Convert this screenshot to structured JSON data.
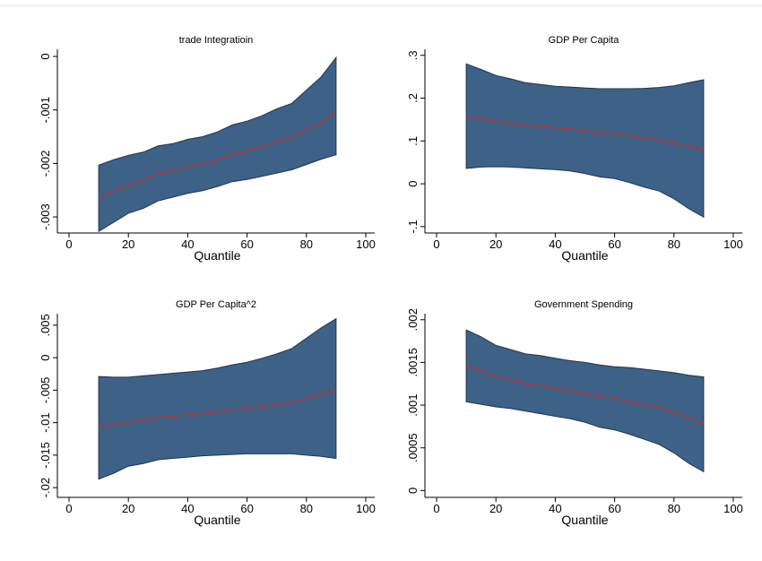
{
  "chart_data": [
    {
      "type": "area",
      "title": "trade Integratioin",
      "xlabel": "Quantile",
      "ylabel": "",
      "xlim": [
        0,
        100
      ],
      "ylim": [
        -0.0033,
        0.0001
      ],
      "xticks": [
        0,
        20,
        40,
        60,
        80,
        100
      ],
      "xtick_labels": [
        "0",
        "20",
        "40",
        "60",
        "80",
        "100"
      ],
      "yticks": [
        0,
        -0.001,
        -0.002,
        -0.003
      ],
      "ytick_labels": [
        "0",
        "-.001",
        "-.002",
        "-.003"
      ],
      "x": [
        10,
        15,
        20,
        25,
        30,
        35,
        40,
        45,
        50,
        55,
        60,
        65,
        70,
        75,
        80,
        85,
        90
      ],
      "estimate": [
        -0.00265,
        -0.00252,
        -0.0024,
        -0.00232,
        -0.00219,
        -0.00214,
        -0.00206,
        -0.00201,
        -0.00193,
        -0.00183,
        -0.00176,
        -0.00168,
        -0.00159,
        -0.00152,
        -0.00138,
        -0.00123,
        -0.00103
      ],
      "upper": [
        -0.00203,
        -0.00193,
        -0.00185,
        -0.00179,
        -0.00167,
        -0.00163,
        -0.00155,
        -0.0015,
        -0.00141,
        -0.00128,
        -0.00121,
        -0.00111,
        -0.00098,
        -0.00088,
        -0.00063,
        -0.00038,
        -2e-05
      ],
      "lower": [
        -0.00327,
        -0.0031,
        -0.00293,
        -0.00284,
        -0.0027,
        -0.00263,
        -0.00256,
        -0.00251,
        -0.00243,
        -0.00234,
        -0.0023,
        -0.00224,
        -0.00218,
        -0.00212,
        -0.00202,
        -0.00192,
        -0.00184
      ],
      "grid": false,
      "colors": {
        "band": "#3e6187",
        "band_edge": "#1f3550",
        "line": "#b2363a"
      }
    },
    {
      "type": "area",
      "title": "GDP Per Capita",
      "xlabel": "Quantile",
      "ylabel": "",
      "xlim": [
        0,
        100
      ],
      "ylim": [
        -0.115,
        0.31
      ],
      "xticks": [
        0,
        20,
        40,
        60,
        80,
        100
      ],
      "xtick_labels": [
        "0",
        "20",
        "40",
        "60",
        "80",
        "100"
      ],
      "yticks": [
        -0.1,
        0,
        0.1,
        0.2,
        0.3
      ],
      "ytick_labels": [
        "-.1",
        "0",
        ".1",
        ".2",
        ".3"
      ],
      "x": [
        10,
        15,
        20,
        25,
        30,
        35,
        40,
        45,
        50,
        55,
        60,
        65,
        70,
        75,
        80,
        85,
        90
      ],
      "estimate": [
        0.158,
        0.153,
        0.146,
        0.142,
        0.137,
        0.134,
        0.131,
        0.128,
        0.124,
        0.12,
        0.117,
        0.112,
        0.107,
        0.103,
        0.095,
        0.087,
        0.081
      ],
      "upper": [
        0.28,
        0.267,
        0.253,
        0.245,
        0.236,
        0.232,
        0.228,
        0.226,
        0.224,
        0.222,
        0.222,
        0.222,
        0.223,
        0.225,
        0.229,
        0.236,
        0.243
      ],
      "lower": [
        0.036,
        0.039,
        0.04,
        0.039,
        0.037,
        0.035,
        0.033,
        0.03,
        0.024,
        0.016,
        0.012,
        0.003,
        -0.008,
        -0.017,
        -0.035,
        -0.058,
        -0.078
      ],
      "grid": false,
      "colors": {
        "band": "#3e6187",
        "band_edge": "#1f3550",
        "line": "#b2363a"
      }
    },
    {
      "type": "area",
      "title": "GDP Per Capita^2",
      "xlabel": "Quantile",
      "ylabel": "",
      "xlim": [
        0,
        100
      ],
      "ylim": [
        -0.0215,
        0.0065
      ],
      "xticks": [
        0,
        20,
        40,
        60,
        80,
        100
      ],
      "xtick_labels": [
        "0",
        "20",
        "40",
        "60",
        "80",
        "100"
      ],
      "yticks": [
        -0.02,
        -0.015,
        -0.01,
        -0.005,
        0,
        0.005
      ],
      "ytick_labels": [
        "-.02",
        "-.015",
        "-.01",
        "-.005",
        "0",
        ".005"
      ],
      "x": [
        10,
        15,
        20,
        25,
        30,
        35,
        40,
        45,
        50,
        55,
        60,
        65,
        70,
        75,
        80,
        85,
        90
      ],
      "estimate": [
        -0.0107,
        -0.0103,
        -0.0099,
        -0.0096,
        -0.0092,
        -0.009,
        -0.0088,
        -0.0086,
        -0.0083,
        -0.008,
        -0.0078,
        -0.0075,
        -0.0072,
        -0.0069,
        -0.0063,
        -0.0056,
        -0.005
      ],
      "upper": [
        -0.0029,
        -0.003,
        -0.003,
        -0.0028,
        -0.0026,
        -0.0024,
        -0.0022,
        -0.002,
        -0.0016,
        -0.0011,
        -0.0007,
        -0.0001,
        0.0006,
        0.0014,
        0.003,
        0.0046,
        0.006
      ],
      "lower": [
        -0.0187,
        -0.0178,
        -0.0167,
        -0.0163,
        -0.0157,
        -0.0155,
        -0.0153,
        -0.0151,
        -0.015,
        -0.0149,
        -0.0148,
        -0.0148,
        -0.0148,
        -0.0148,
        -0.015,
        -0.0152,
        -0.0155
      ],
      "grid": false,
      "colors": {
        "band": "#3e6187",
        "band_edge": "#1f3550",
        "line": "#b2363a"
      }
    },
    {
      "type": "area",
      "title": "Government Spending",
      "xlabel": "Quantile",
      "ylabel": "",
      "xlim": [
        0,
        100
      ],
      "ylim": [
        -8e-05,
        0.00205
      ],
      "xticks": [
        0,
        20,
        40,
        60,
        80,
        100
      ],
      "xtick_labels": [
        "0",
        "20",
        "40",
        "60",
        "80",
        "100"
      ],
      "yticks": [
        0,
        0.0005,
        0.001,
        0.0015,
        0.002
      ],
      "ytick_labels": [
        "0",
        ".0005",
        ".001",
        ".0015",
        ".002"
      ],
      "x": [
        10,
        15,
        20,
        25,
        30,
        35,
        40,
        45,
        50,
        55,
        60,
        65,
        70,
        75,
        80,
        85,
        90
      ],
      "estimate": [
        0.00146,
        0.0014,
        0.00134,
        0.0013,
        0.00125,
        0.00123,
        0.0012,
        0.00117,
        0.00114,
        0.0011,
        0.00108,
        0.00104,
        0.00101,
        0.00098,
        0.00092,
        0.00085,
        0.00079
      ],
      "upper": [
        0.00188,
        0.0018,
        0.0017,
        0.00165,
        0.0016,
        0.00158,
        0.00155,
        0.00152,
        0.0015,
        0.00147,
        0.00145,
        0.00144,
        0.00142,
        0.0014,
        0.00138,
        0.00135,
        0.00133
      ],
      "lower": [
        0.00104,
        0.00101,
        0.00098,
        0.00096,
        0.00093,
        0.0009,
        0.00087,
        0.00084,
        0.0008,
        0.00074,
        0.00071,
        0.00066,
        0.0006,
        0.00054,
        0.00044,
        0.00032,
        0.00022
      ],
      "grid": false,
      "colors": {
        "band": "#3e6187",
        "band_edge": "#1f3550",
        "line": "#b2363a"
      }
    }
  ]
}
